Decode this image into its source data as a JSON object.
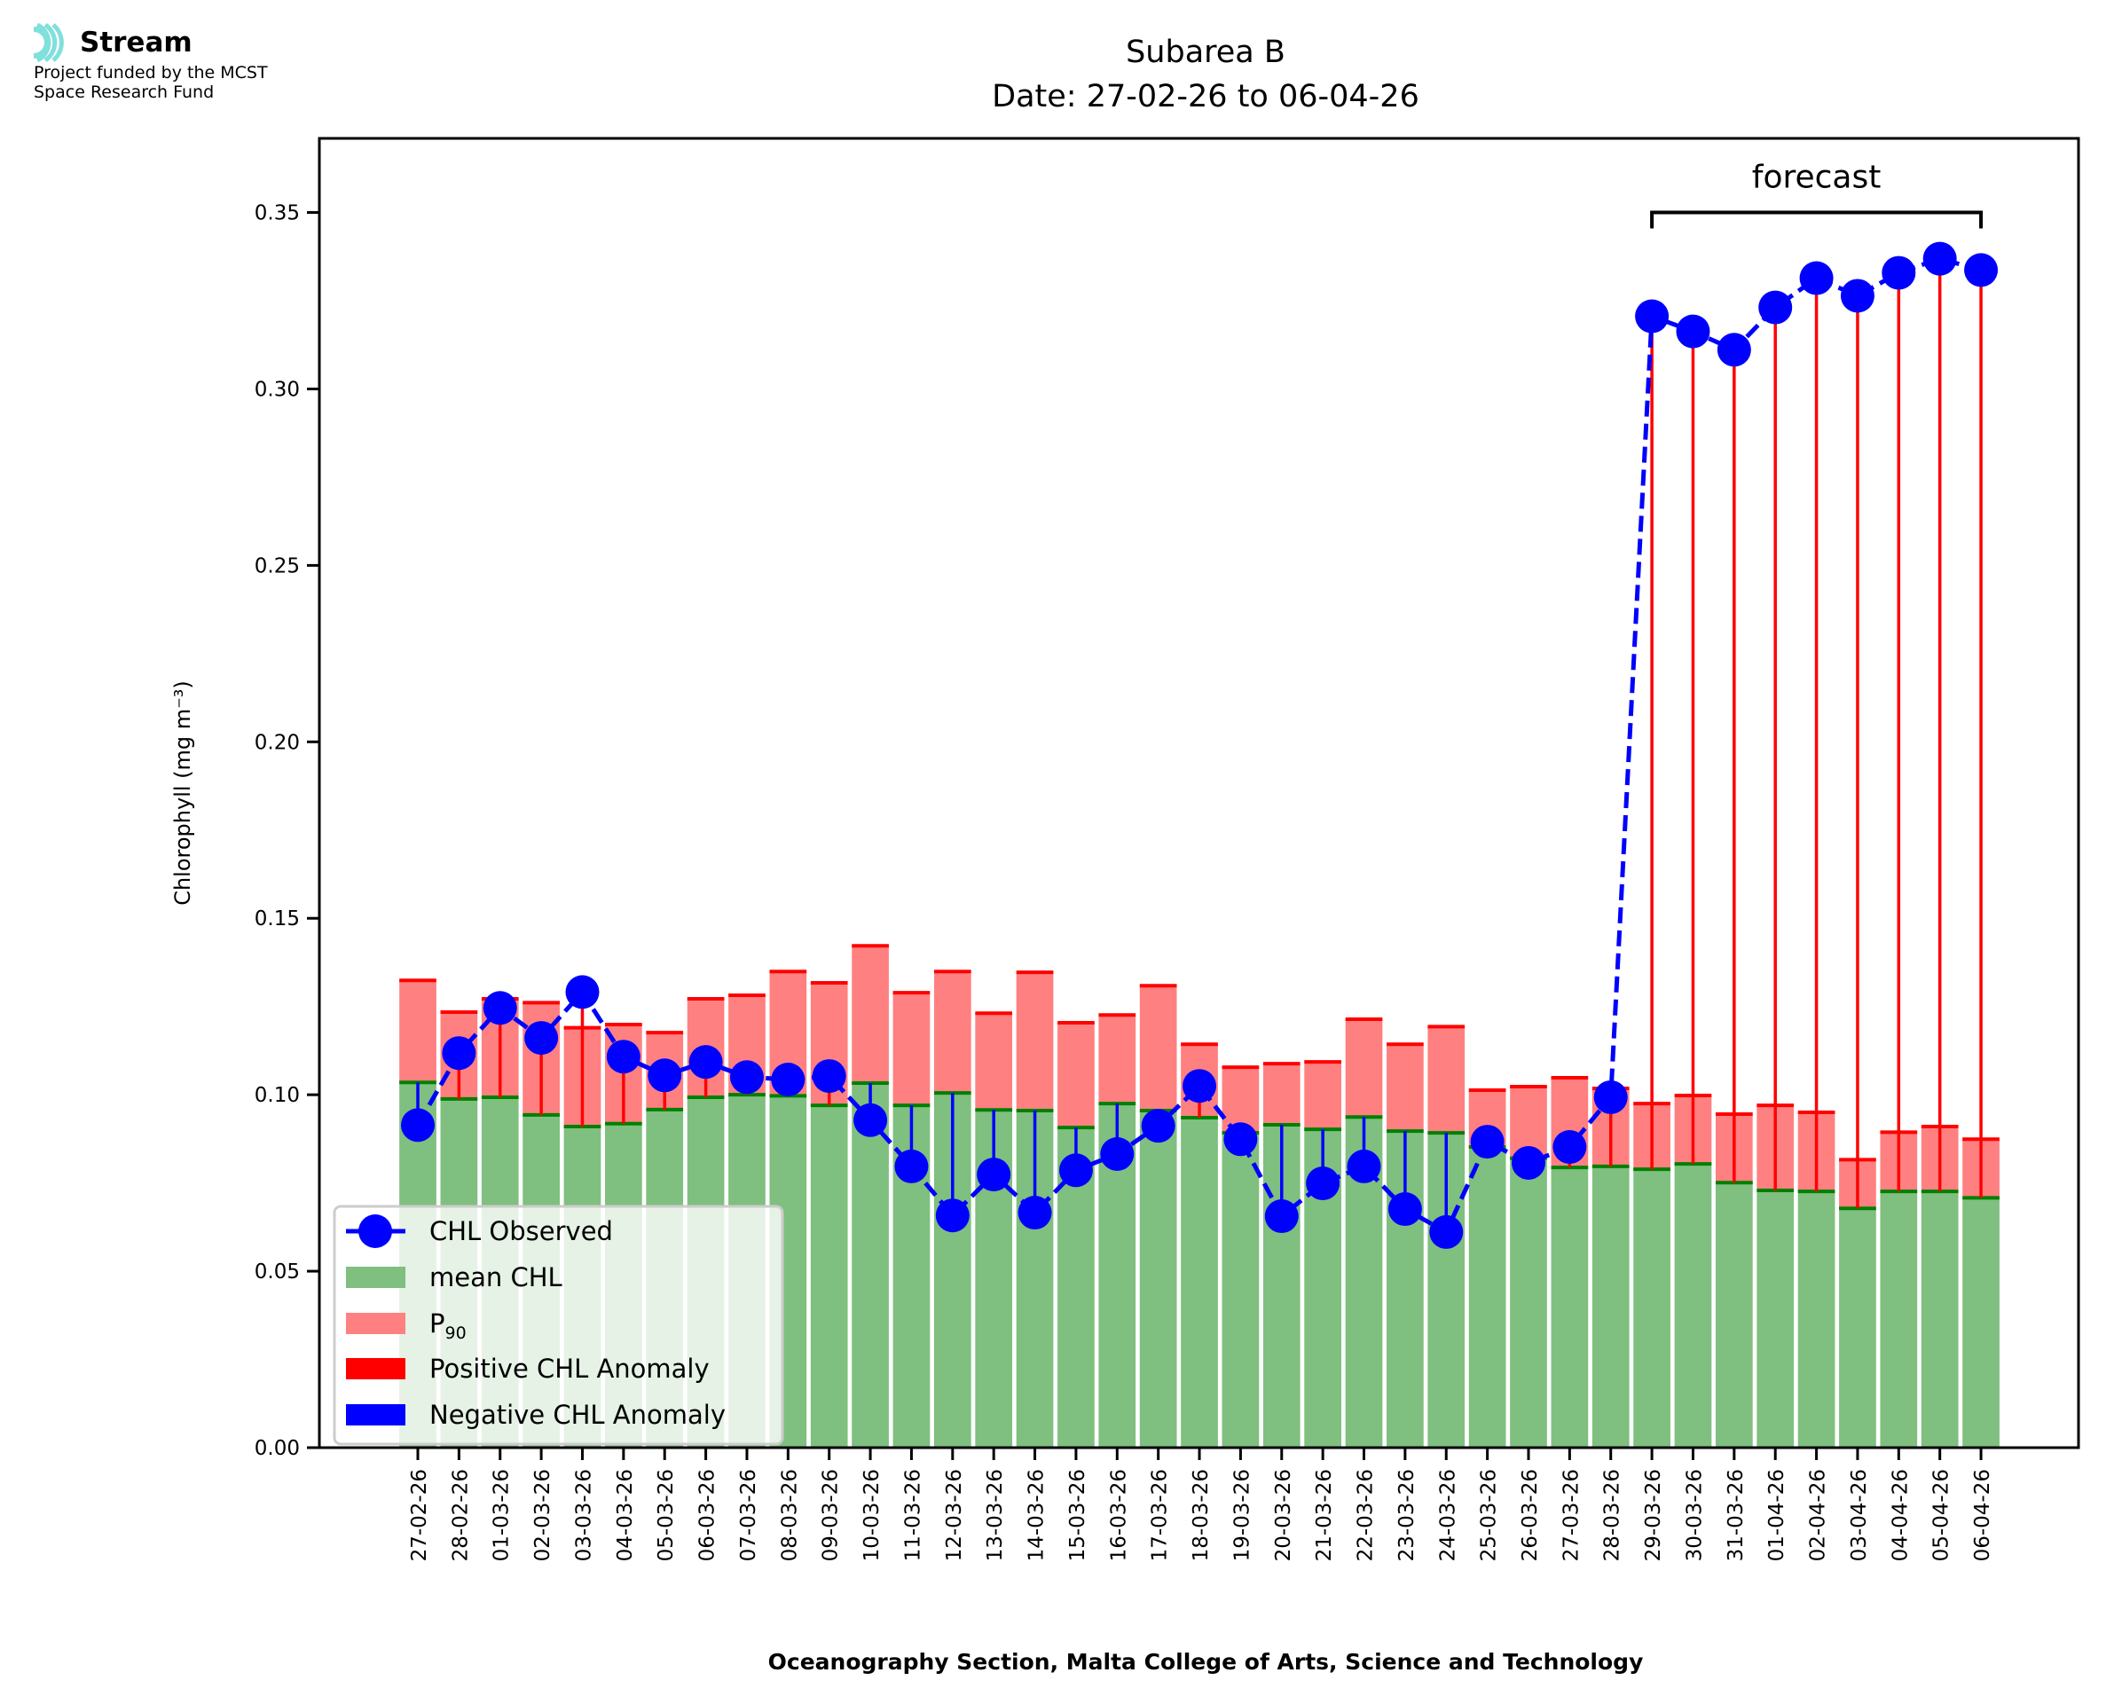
{
  "logo": {
    "name": "Stream",
    "funding_line1": "Project funded by the MCST",
    "funding_line2": "Space Research Fund",
    "color": "#7fe0dc"
  },
  "chart_data": {
    "type": "bar",
    "title": "Subarea B",
    "subtitle": "Date: 27-02-26 to 06-04-26",
    "xlabel": "Oceanography Section, Malta College of Arts, Science and Technology",
    "ylabel": "Chlorophyll (mg m⁻³)",
    "ylim": [
      0,
      0.371
    ],
    "yticks": [
      0.0,
      0.05,
      0.1,
      0.15,
      0.2,
      0.25,
      0.3,
      0.35
    ],
    "ytick_labels": [
      "0.00",
      "0.05",
      "0.10",
      "0.15",
      "0.20",
      "0.25",
      "0.30",
      "0.35"
    ],
    "grid": false,
    "legend_position": "lower-left",
    "categories": [
      "27-02-26",
      "28-02-26",
      "01-03-26",
      "02-03-26",
      "03-03-26",
      "04-03-26",
      "05-03-26",
      "06-03-26",
      "07-03-26",
      "08-03-26",
      "09-03-26",
      "10-03-26",
      "11-03-26",
      "12-03-26",
      "13-03-26",
      "14-03-26",
      "15-03-26",
      "16-03-26",
      "17-03-26",
      "18-03-26",
      "19-03-26",
      "20-03-26",
      "21-03-26",
      "22-03-26",
      "23-03-26",
      "24-03-26",
      "25-03-26",
      "26-03-26",
      "27-03-26",
      "28-03-26",
      "29-03-26",
      "30-03-26",
      "31-03-26",
      "01-04-26",
      "02-04-26",
      "03-04-26",
      "04-04-26",
      "05-04-26",
      "06-04-26"
    ],
    "series": [
      {
        "name": "mean CHL",
        "kind": "bar",
        "color": "#7fbf7f",
        "edge_color": "#008000",
        "values": [
          0.1035,
          0.0988,
          0.0993,
          0.0943,
          0.091,
          0.0918,
          0.0958,
          0.0993,
          0.1,
          0.0997,
          0.097,
          0.1033,
          0.097,
          0.1005,
          0.0957,
          0.0955,
          0.0907,
          0.0975,
          0.0955,
          0.0935,
          0.0892,
          0.0915,
          0.0902,
          0.0937,
          0.0897,
          0.0892,
          0.0852,
          0.082,
          0.0794,
          0.0797,
          0.0789,
          0.0804,
          0.0751,
          0.0729,
          0.0726,
          0.0678,
          0.0726,
          0.0726,
          0.0708
        ]
      },
      {
        "name": "P₉₀",
        "label_main": "P",
        "label_sub": "90",
        "kind": "bar-top",
        "color": "#ff8080",
        "edge_color": "#ff0000",
        "values": [
          0.1324,
          0.1234,
          0.1272,
          0.1261,
          0.119,
          0.1199,
          0.1176,
          0.1272,
          0.1282,
          0.1349,
          0.1317,
          0.1422,
          0.1289,
          0.1349,
          0.1231,
          0.1347,
          0.1204,
          0.1226,
          0.1309,
          0.1143,
          0.1078,
          0.1088,
          0.1093,
          0.1214,
          0.1143,
          0.1193,
          0.1013,
          0.1023,
          0.1048,
          0.1018,
          0.0975,
          0.0998,
          0.0945,
          0.097,
          0.095,
          0.0816,
          0.0894,
          0.091,
          0.0874
        ]
      },
      {
        "name": "CHL Observed",
        "kind": "line",
        "color": "#0000ff",
        "line_style": "dashed",
        "marker": "circle",
        "values": [
          0.0914,
          0.1118,
          0.1246,
          0.1161,
          0.1291,
          0.1108,
          0.1055,
          0.1093,
          0.105,
          0.1043,
          0.1053,
          0.0928,
          0.0797,
          0.0658,
          0.0774,
          0.0666,
          0.0786,
          0.0832,
          0.0912,
          0.1025,
          0.0874,
          0.0656,
          0.0749,
          0.0797,
          0.0676,
          0.0611,
          0.0867,
          0.0807,
          0.0852,
          0.0993,
          0.3206,
          0.3163,
          0.3111,
          0.3231,
          0.3314,
          0.3264,
          0.3329,
          0.3369,
          0.3337
        ]
      }
    ],
    "anomaly_colors": {
      "positive": "#ff0000",
      "negative": "#0000ff"
    },
    "annotations": [
      {
        "text": "forecast",
        "type": "bracket",
        "from": "29-03-26",
        "to": "06-04-26",
        "y": 0.35
      }
    ],
    "legend": [
      {
        "label": "CHL Observed",
        "type": "line-marker",
        "color": "#0000ff"
      },
      {
        "label": "mean CHL",
        "type": "patch",
        "color": "#7fbf7f"
      },
      {
        "label": "P",
        "sub": "90",
        "type": "patch",
        "color": "#ff8080"
      },
      {
        "label": "Positive CHL Anomaly",
        "type": "patch",
        "color": "#ff0000"
      },
      {
        "label": "Negative CHL Anomaly",
        "type": "patch",
        "color": "#0000ff"
      }
    ]
  }
}
